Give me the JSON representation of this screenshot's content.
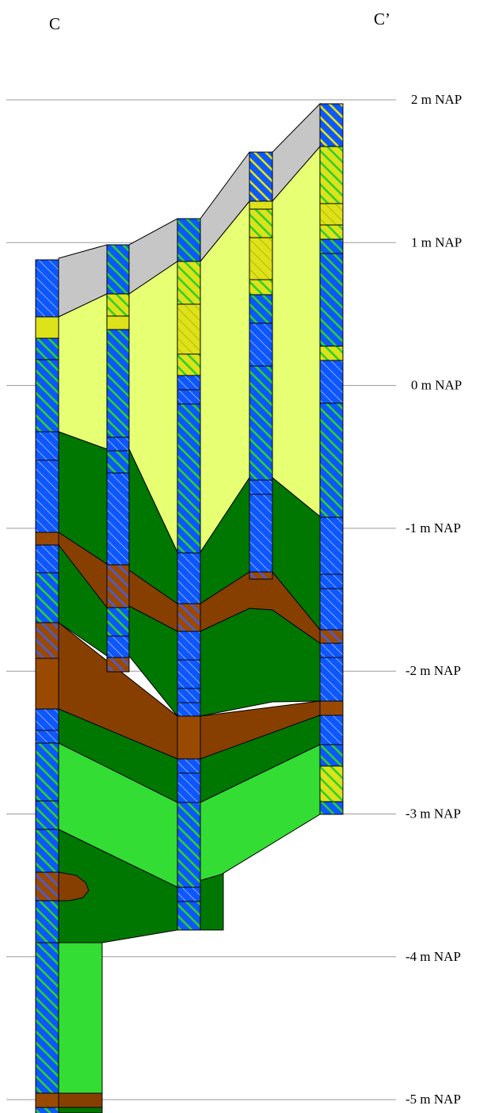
{
  "section": {
    "start_label": "C",
    "end_label": "C’"
  },
  "elevation_labels": [
    {
      "value": 2,
      "text": "2  m NAP"
    },
    {
      "value": 1,
      "text": "1  m NAP"
    },
    {
      "value": 0,
      "text": "0  m NAP"
    },
    {
      "value": -1,
      "text": "-1  m NAP"
    },
    {
      "value": -2,
      "text": "-2  m NAP"
    },
    {
      "value": -3,
      "text": "-3  m NAP"
    },
    {
      "value": -4,
      "text": "-4  m NAP"
    },
    {
      "value": -5,
      "text": "-5  m NAP"
    }
  ],
  "colors": {
    "fill_top": "#c6c6c6",
    "sand_light_yellow": "#e6ff73",
    "clay_dark_green": "#007700",
    "peat_brown": "#873f00",
    "clay_light_green": "#33dd33",
    "core_blue": "#0d57ff",
    "hatch_green": "#2bd12b",
    "hatch_yellow": "#e6e600",
    "core_yellow": "#dde21a",
    "core_brown": "#9a4a00",
    "core_grey": "#8a9bd0",
    "line_grey": "#9a9a9a"
  }
}
